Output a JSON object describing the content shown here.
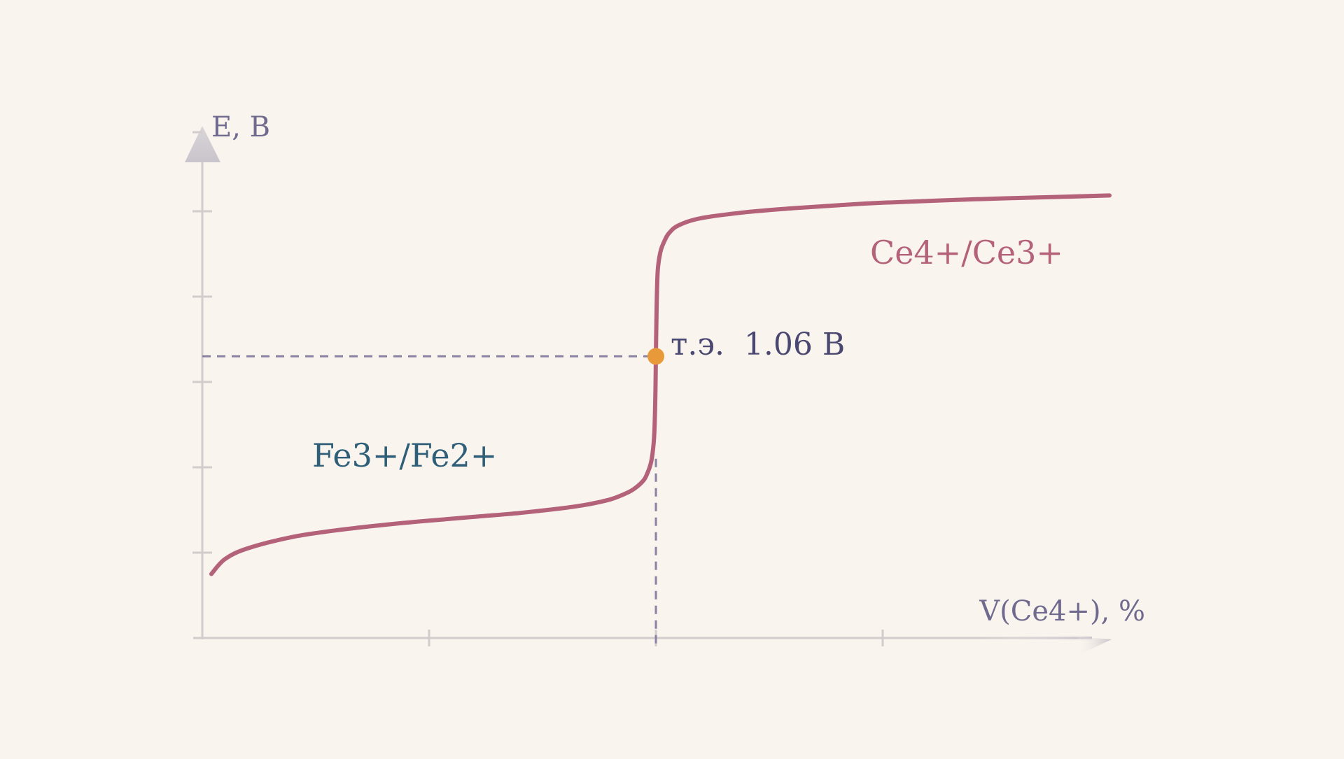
{
  "colors": {
    "background": "#faf4ee",
    "axis": "#d1cdcc",
    "curve": "#b4627a",
    "guide": "#8a82a2",
    "point": "#e89a3a",
    "axis_label": "#6f6a8e",
    "label_fe": "#2f5e78",
    "label_ce": "#b4627a",
    "label_eq": "#4a4770"
  },
  "chart_data": {
    "type": "line",
    "title": "",
    "xlabel": "V(Ce4+), %",
    "ylabel": "E, B",
    "xlim": [
      0,
      200
    ],
    "ylim": [
      0.4,
      1.6
    ],
    "x_ticks": [
      50,
      100,
      150
    ],
    "y_ticks": [
      0.6,
      0.8,
      1.0,
      1.2,
      1.4
    ],
    "grid": false,
    "series": [
      {
        "values": [
          [
            2,
            0.55
          ],
          [
            5,
            0.585
          ],
          [
            10,
            0.61
          ],
          [
            20,
            0.637
          ],
          [
            30,
            0.653
          ],
          [
            40,
            0.665
          ],
          [
            50,
            0.675
          ],
          [
            60,
            0.684
          ],
          [
            70,
            0.693
          ],
          [
            80,
            0.705
          ],
          [
            85,
            0.713
          ],
          [
            90,
            0.725
          ],
          [
            93,
            0.737
          ],
          [
            95,
            0.748
          ],
          [
            97,
            0.766
          ],
          [
            98,
            0.783
          ],
          [
            99,
            0.815
          ],
          [
            99.6,
            0.87
          ],
          [
            99.85,
            0.95
          ],
          [
            100,
            1.06
          ],
          [
            100.15,
            1.17
          ],
          [
            100.4,
            1.26
          ],
          [
            101,
            1.305
          ],
          [
            102,
            1.333
          ],
          [
            103,
            1.35
          ],
          [
            105,
            1.367
          ],
          [
            110,
            1.384
          ],
          [
            120,
            1.398
          ],
          [
            130,
            1.407
          ],
          [
            140,
            1.414
          ],
          [
            150,
            1.42
          ],
          [
            170,
            1.428
          ],
          [
            190,
            1.434
          ],
          [
            200,
            1.437
          ]
        ]
      }
    ],
    "equivalence_point": {
      "x": 100,
      "y": 1.06
    },
    "annotations": {
      "fe": "Fe3+/Fe2+",
      "ce": "Ce4+/Ce3+",
      "eq": "т.э.  1.06 В"
    }
  }
}
